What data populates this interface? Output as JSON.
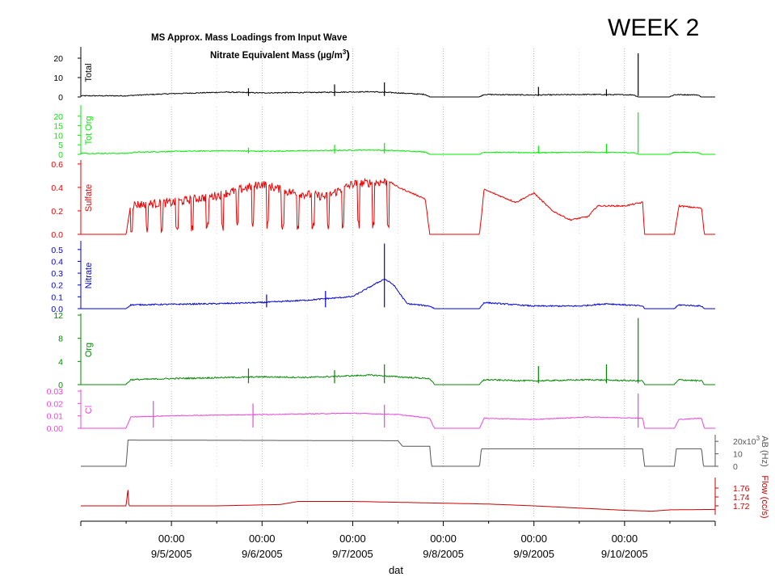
{
  "header": {
    "week_label": "WEEK 2",
    "title_line1": "MS Approx. Mass Loadings from Input Wave",
    "title_line2": "Nitrate Equivalent Mass (µg/m",
    "title_line2_sup": "3",
    "title_line2_close": ")"
  },
  "chart_data": {
    "type": "line",
    "xlabel": "dat",
    "x_ticks": [
      {
        "time": "00:00",
        "date": "9/5/2005"
      },
      {
        "time": "00:00",
        "date": "9/6/2005"
      },
      {
        "time": "00:00",
        "date": "9/7/2005"
      },
      {
        "time": "00:00",
        "date": "9/8/2005"
      },
      {
        "time": "00:00",
        "date": "9/9/2005"
      },
      {
        "time": "00:00",
        "date": "9/10/2005"
      }
    ],
    "xlim_days": [
      "9/4/2005 00:00",
      "9/11/2005 00:00"
    ],
    "panels": [
      {
        "name": "Total",
        "color": "#000000",
        "ylim": [
          0,
          25
        ],
        "ticks": [
          "0",
          "10",
          "20"
        ],
        "tick_values": [
          0,
          10,
          20
        ],
        "side": "left",
        "series_points": [
          [
            4.5,
            0.5
          ],
          [
            4.6,
            0.8
          ],
          [
            5.0,
            1.6
          ],
          [
            5.6,
            2.4
          ],
          [
            6.0,
            2.0
          ],
          [
            6.5,
            2.2
          ],
          [
            7.2,
            2.6
          ],
          [
            7.5,
            2.0
          ],
          [
            7.8,
            1.2
          ],
          [
            7.85,
            0
          ],
          [
            8.4,
            0
          ],
          [
            8.45,
            1.2
          ],
          [
            9.0,
            0.9
          ],
          [
            9.6,
            1.2
          ],
          [
            10.1,
            1.0
          ],
          [
            10.15,
            0
          ],
          [
            10.5,
            0
          ],
          [
            10.55,
            1.1
          ],
          [
            10.8,
            1.0
          ],
          [
            10.85,
            0
          ]
        ],
        "spikes": [
          [
            5.85,
            4.5
          ],
          [
            6.8,
            6.5
          ],
          [
            7.35,
            7.5
          ],
          [
            9.05,
            5.2
          ],
          [
            9.8,
            4.0
          ],
          [
            10.15,
            22.5
          ]
        ]
      },
      {
        "name": "Tot Org",
        "color": "#00ee00",
        "ylim": [
          0,
          25
        ],
        "ticks": [
          "0",
          "5",
          "10",
          "15",
          "20"
        ],
        "tick_values": [
          0,
          5,
          10,
          15,
          20
        ],
        "side": "left",
        "series_points": [
          [
            4.5,
            0.4
          ],
          [
            4.6,
            1.0
          ],
          [
            5.0,
            1.4
          ],
          [
            5.6,
            1.8
          ],
          [
            6.0,
            1.5
          ],
          [
            6.5,
            1.8
          ],
          [
            7.2,
            2.2
          ],
          [
            7.5,
            1.8
          ],
          [
            7.8,
            1.2
          ],
          [
            7.85,
            0
          ],
          [
            8.4,
            0
          ],
          [
            8.45,
            1.0
          ],
          [
            9.0,
            0.8
          ],
          [
            9.6,
            1.0
          ],
          [
            10.1,
            0.8
          ],
          [
            10.15,
            0
          ],
          [
            10.5,
            0
          ],
          [
            10.55,
            1.0
          ],
          [
            10.8,
            0.9
          ],
          [
            10.85,
            0
          ]
        ],
        "spikes": [
          [
            5.85,
            3.5
          ],
          [
            6.8,
            5.0
          ],
          [
            7.35,
            6.0
          ],
          [
            9.05,
            4.5
          ],
          [
            9.8,
            5.5
          ],
          [
            10.15,
            22.0
          ]
        ]
      },
      {
        "name": "Sulfate",
        "color": "#ee0000",
        "ylim": [
          0,
          0.62
        ],
        "ticks": [
          "0.0",
          "0.2",
          "0.4",
          "0.6"
        ],
        "tick_values": [
          0,
          0.2,
          0.4,
          0.6
        ],
        "side": "left",
        "series_points": [
          [
            4.0,
            0
          ],
          [
            4.5,
            0
          ],
          [
            4.55,
            0.25
          ],
          [
            5.0,
            0.27
          ],
          [
            5.5,
            0.33
          ],
          [
            6.0,
            0.43
          ],
          [
            6.3,
            0.36
          ],
          [
            6.7,
            0.32
          ],
          [
            7.0,
            0.43
          ],
          [
            7.4,
            0.45
          ],
          [
            7.5,
            0.4
          ],
          [
            7.8,
            0.3
          ],
          [
            7.85,
            0
          ],
          [
            8.4,
            0
          ],
          [
            8.45,
            0.38
          ],
          [
            8.8,
            0.27
          ],
          [
            9.0,
            0.35
          ],
          [
            9.2,
            0.2
          ],
          [
            9.4,
            0.12
          ],
          [
            9.6,
            0.15
          ],
          [
            9.7,
            0.24
          ],
          [
            10.0,
            0.24
          ],
          [
            10.2,
            0.27
          ],
          [
            10.22,
            0
          ],
          [
            10.55,
            0
          ],
          [
            10.6,
            0.24
          ],
          [
            10.85,
            0.22
          ],
          [
            10.88,
            0
          ],
          [
            11.0,
            0
          ]
        ],
        "oscillation": {
          "start_day": 4.55,
          "end_day": 7.4,
          "low": 0.0,
          "cycles_per_day": 6
        }
      },
      {
        "name": "Nitrate",
        "color": "#0000dd",
        "ylim": [
          0,
          0.56
        ],
        "ticks": [
          "0.0",
          "0.1",
          "0.2",
          "0.3",
          "0.4",
          "0.5"
        ],
        "tick_values": [
          0,
          0.1,
          0.2,
          0.3,
          0.4,
          0.5
        ],
        "side": "left",
        "series_points": [
          [
            4.0,
            0
          ],
          [
            4.5,
            0
          ],
          [
            4.55,
            0.03
          ],
          [
            5.5,
            0.04
          ],
          [
            6.0,
            0.05
          ],
          [
            6.5,
            0.07
          ],
          [
            7.0,
            0.1
          ],
          [
            7.35,
            0.25
          ],
          [
            7.45,
            0.2
          ],
          [
            7.6,
            0.04
          ],
          [
            7.85,
            0.02
          ],
          [
            7.9,
            0
          ],
          [
            8.4,
            0
          ],
          [
            8.45,
            0.05
          ],
          [
            9.0,
            0.02
          ],
          [
            9.5,
            0.02
          ],
          [
            9.8,
            0.04
          ],
          [
            10.2,
            0.02
          ],
          [
            10.22,
            0
          ],
          [
            10.55,
            0
          ],
          [
            10.6,
            0.03
          ],
          [
            10.85,
            0.02
          ],
          [
            10.88,
            0
          ],
          [
            11.0,
            0
          ]
        ],
        "spikes": [
          [
            6.05,
            0.12
          ],
          [
            6.7,
            0.15
          ],
          [
            7.35,
            0.55
          ]
        ]
      },
      {
        "name": "Org",
        "color": "#008800",
        "ylim": [
          0,
          12
        ],
        "ticks": [
          "0",
          "4",
          "8",
          "12"
        ],
        "tick_values": [
          0,
          4,
          8,
          12
        ],
        "side": "left",
        "series_points": [
          [
            4.0,
            0
          ],
          [
            4.5,
            0
          ],
          [
            4.55,
            0.8
          ],
          [
            5.0,
            1.0
          ],
          [
            6.0,
            1.3
          ],
          [
            6.5,
            1.2
          ],
          [
            7.2,
            1.6
          ],
          [
            7.5,
            1.3
          ],
          [
            7.85,
            1.0
          ],
          [
            7.9,
            0
          ],
          [
            8.4,
            0
          ],
          [
            8.45,
            0.8
          ],
          [
            9.0,
            0.6
          ],
          [
            9.6,
            0.8
          ],
          [
            10.2,
            0.6
          ],
          [
            10.22,
            0
          ],
          [
            10.55,
            0
          ],
          [
            10.6,
            0.8
          ],
          [
            10.85,
            0.6
          ],
          [
            10.88,
            0
          ]
        ],
        "spikes": [
          [
            5.85,
            2.8
          ],
          [
            6.8,
            2.5
          ],
          [
            7.35,
            3.5
          ],
          [
            9.05,
            3.2
          ],
          [
            9.8,
            3.5
          ],
          [
            10.15,
            11.5
          ]
        ]
      },
      {
        "name": "Cl",
        "color": "#ee44dd",
        "ylim": [
          0,
          0.03
        ],
        "ticks": [
          "0.00",
          "0.01",
          "0.02",
          "0.03"
        ],
        "tick_values": [
          0,
          0.01,
          0.02,
          0.03
        ],
        "side": "left",
        "series_points": [
          [
            4.0,
            0
          ],
          [
            4.5,
            0
          ],
          [
            4.55,
            0.009
          ],
          [
            5.0,
            0.01
          ],
          [
            6.0,
            0.011
          ],
          [
            7.0,
            0.012
          ],
          [
            7.5,
            0.011
          ],
          [
            7.85,
            0.008
          ],
          [
            7.9,
            0
          ],
          [
            8.4,
            0
          ],
          [
            8.45,
            0.008
          ],
          [
            9.0,
            0.007
          ],
          [
            9.6,
            0.009
          ],
          [
            10.2,
            0.008
          ],
          [
            10.22,
            0
          ],
          [
            10.55,
            0
          ],
          [
            10.6,
            0.007
          ],
          [
            10.85,
            0.008
          ],
          [
            10.88,
            0
          ]
        ],
        "spikes": [
          [
            4.8,
            0.022
          ],
          [
            5.9,
            0.02
          ],
          [
            7.35,
            0.019
          ],
          [
            10.15,
            0.028
          ]
        ]
      },
      {
        "name": "AB (Hz)",
        "color": "#555555",
        "ylim": [
          0,
          24
        ],
        "ticks": [
          "0",
          "10",
          "20x10"
        ],
        "tick_values": [
          0,
          10,
          20
        ],
        "tick_sup": "3",
        "side": "right",
        "series_points": [
          [
            4.0,
            0
          ],
          [
            4.5,
            0
          ],
          [
            4.52,
            21
          ],
          [
            7.5,
            20.5
          ],
          [
            7.55,
            16
          ],
          [
            7.85,
            16
          ],
          [
            7.87,
            0
          ],
          [
            8.4,
            0
          ],
          [
            8.42,
            14
          ],
          [
            10.2,
            14
          ],
          [
            10.22,
            0
          ],
          [
            10.55,
            0
          ],
          [
            10.57,
            14
          ],
          [
            10.85,
            14
          ],
          [
            10.87,
            0
          ],
          [
            11.0,
            0
          ]
        ]
      },
      {
        "name": "Flow (cc/s)",
        "color": "#cc0000",
        "ylim": [
          1.7,
          1.78
        ],
        "ticks": [
          "1.72",
          "1.74",
          "1.76"
        ],
        "tick_values": [
          1.72,
          1.74,
          1.76
        ],
        "side": "right",
        "series_points": [
          [
            4.0,
            1.72
          ],
          [
            4.5,
            1.72
          ],
          [
            4.52,
            1.76
          ],
          [
            4.53,
            1.72
          ],
          [
            5.5,
            1.72
          ],
          [
            6.2,
            1.723
          ],
          [
            6.4,
            1.73
          ],
          [
            7.0,
            1.73
          ],
          [
            7.5,
            1.728
          ],
          [
            8.0,
            1.726
          ],
          [
            8.5,
            1.724
          ],
          [
            9.0,
            1.72
          ],
          [
            9.5,
            1.715
          ],
          [
            10.0,
            1.71
          ],
          [
            10.3,
            1.708
          ],
          [
            10.5,
            1.711
          ],
          [
            11.0,
            1.712
          ]
        ]
      }
    ]
  }
}
